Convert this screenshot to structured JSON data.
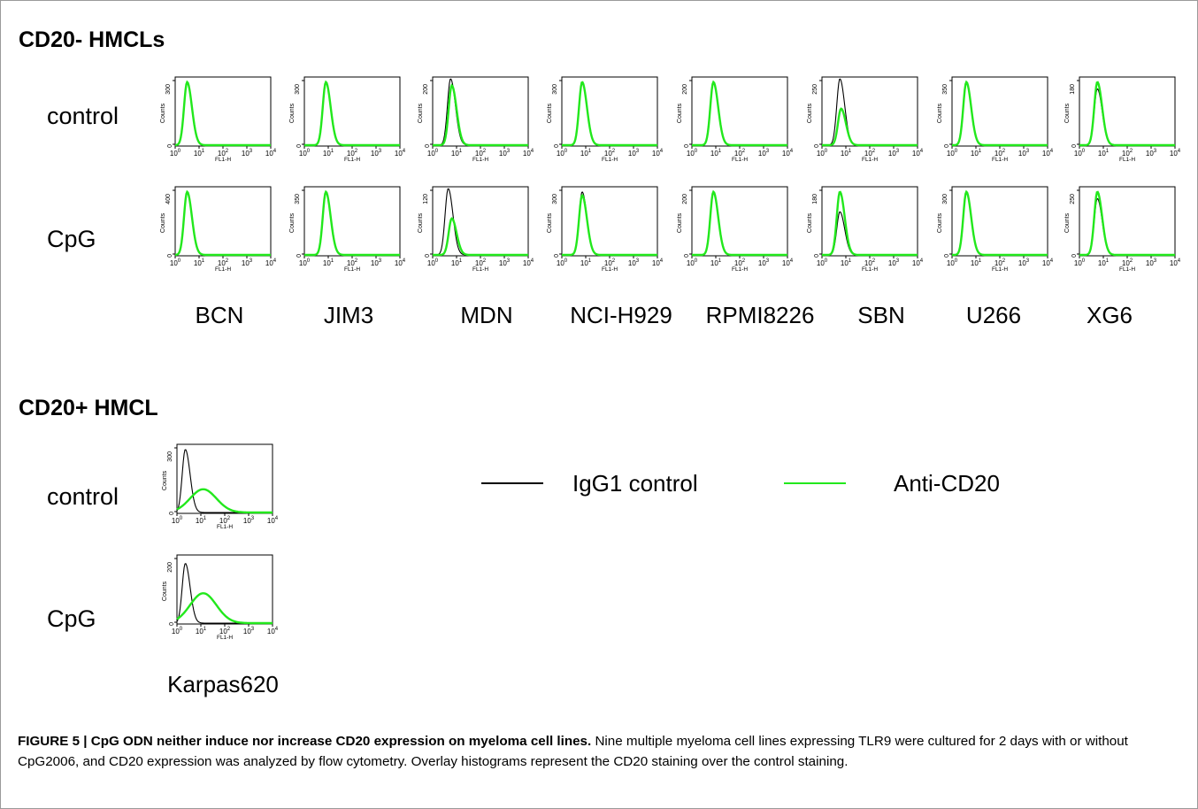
{
  "figure": {
    "section1_title": "CD20- HMCLs",
    "section2_title": "CD20+ HMCL",
    "row_labels": [
      "control",
      "CpG"
    ],
    "cell_lines": [
      "BCN",
      "JIM3",
      "MDN",
      "NCI-H929",
      "RPMI8226",
      "SBN",
      "U266",
      "XG6"
    ],
    "cd20_pos_line": "Karpas620",
    "axis": {
      "xlabel": "FL1-H",
      "ylabel": "Counts",
      "x_ticks": [
        "10^0",
        "10^1",
        "10^2",
        "10^3",
        "10^4"
      ]
    },
    "legend": [
      {
        "label": "IgG1 control",
        "color": "#000000"
      },
      {
        "label": "Anti-CD20",
        "color": "#22e81c"
      }
    ],
    "caption": {
      "bold": "FIGURE 5 | CpG ODN neither induce nor increase CD20 expression on myeloma cell lines.",
      "text": "Nine multiple myeloma cell lines expressing TLR9 were cultured for 2 days with or without CpG2006, and CD20 expression was analyzed by flow cytometry. Overlay histograms represent the CD20 staining over the control staining."
    }
  },
  "chart_data": [
    {
      "type": "histogram",
      "cell_line": "BCN",
      "condition": "control",
      "ymax_label": "300",
      "x_scale": "log",
      "series": [
        {
          "name": "IgG1 control",
          "peak_log10": 0.5,
          "rel_height": 0.95
        },
        {
          "name": "Anti-CD20",
          "peak_log10": 0.5,
          "rel_height": 0.95
        }
      ]
    },
    {
      "type": "histogram",
      "cell_line": "JIM3",
      "condition": "control",
      "ymax_label": "300",
      "x_scale": "log",
      "series": [
        {
          "name": "IgG1 control",
          "peak_log10": 0.9,
          "rel_height": 0.95
        },
        {
          "name": "Anti-CD20",
          "peak_log10": 0.9,
          "rel_height": 0.95
        }
      ]
    },
    {
      "type": "histogram",
      "cell_line": "MDN",
      "condition": "control",
      "ymax_label": "200",
      "x_scale": "log",
      "series": [
        {
          "name": "IgG1 control",
          "peak_log10": 0.75,
          "rel_height": 1.0
        },
        {
          "name": "Anti-CD20",
          "peak_log10": 0.8,
          "rel_height": 0.9
        }
      ]
    },
    {
      "type": "histogram",
      "cell_line": "NCI-H929",
      "condition": "control",
      "ymax_label": "300",
      "x_scale": "log",
      "series": [
        {
          "name": "IgG1 control",
          "peak_log10": 0.85,
          "rel_height": 0.95
        },
        {
          "name": "Anti-CD20",
          "peak_log10": 0.85,
          "rel_height": 0.95
        }
      ]
    },
    {
      "type": "histogram",
      "cell_line": "RPMI8226",
      "condition": "control",
      "ymax_label": "200",
      "x_scale": "log",
      "series": [
        {
          "name": "IgG1 control",
          "peak_log10": 0.9,
          "rel_height": 0.95
        },
        {
          "name": "Anti-CD20",
          "peak_log10": 0.9,
          "rel_height": 0.95
        }
      ]
    },
    {
      "type": "histogram",
      "cell_line": "SBN",
      "condition": "control",
      "ymax_label": "250",
      "x_scale": "log",
      "series": [
        {
          "name": "IgG1 control",
          "peak_log10": 0.75,
          "rel_height": 1.0
        },
        {
          "name": "Anti-CD20",
          "peak_log10": 0.8,
          "rel_height": 0.55
        }
      ]
    },
    {
      "type": "histogram",
      "cell_line": "U266",
      "condition": "control",
      "ymax_label": "350",
      "x_scale": "log",
      "series": [
        {
          "name": "IgG1 control",
          "peak_log10": 0.6,
          "rel_height": 0.95
        },
        {
          "name": "Anti-CD20",
          "peak_log10": 0.6,
          "rel_height": 0.95
        }
      ]
    },
    {
      "type": "histogram",
      "cell_line": "XG6",
      "condition": "control",
      "ymax_label": "180",
      "x_scale": "log",
      "series": [
        {
          "name": "IgG1 control",
          "peak_log10": 0.75,
          "rel_height": 0.85
        },
        {
          "name": "Anti-CD20",
          "peak_log10": 0.75,
          "rel_height": 0.95
        }
      ]
    },
    {
      "type": "histogram",
      "cell_line": "BCN",
      "condition": "CpG",
      "ymax_label": "400",
      "x_scale": "log",
      "series": [
        {
          "name": "IgG1 control",
          "peak_log10": 0.5,
          "rel_height": 0.95
        },
        {
          "name": "Anti-CD20",
          "peak_log10": 0.5,
          "rel_height": 0.95
        }
      ]
    },
    {
      "type": "histogram",
      "cell_line": "JIM3",
      "condition": "CpG",
      "ymax_label": "350",
      "x_scale": "log",
      "series": [
        {
          "name": "IgG1 control",
          "peak_log10": 0.9,
          "rel_height": 0.95
        },
        {
          "name": "Anti-CD20",
          "peak_log10": 0.9,
          "rel_height": 0.95
        }
      ]
    },
    {
      "type": "histogram",
      "cell_line": "MDN",
      "condition": "CpG",
      "ymax_label": "120",
      "x_scale": "log",
      "series": [
        {
          "name": "IgG1 control",
          "peak_log10": 0.65,
          "rel_height": 1.0
        },
        {
          "name": "Anti-CD20",
          "peak_log10": 0.8,
          "rel_height": 0.55
        }
      ]
    },
    {
      "type": "histogram",
      "cell_line": "NCI-H929",
      "condition": "CpG",
      "ymax_label": "300",
      "x_scale": "log",
      "series": [
        {
          "name": "IgG1 control",
          "peak_log10": 0.85,
          "rel_height": 0.95
        },
        {
          "name": "Anti-CD20",
          "peak_log10": 0.85,
          "rel_height": 0.9
        }
      ]
    },
    {
      "type": "histogram",
      "cell_line": "RPMI8226",
      "condition": "CpG",
      "ymax_label": "200",
      "x_scale": "log",
      "series": [
        {
          "name": "IgG1 control",
          "peak_log10": 0.9,
          "rel_height": 0.95
        },
        {
          "name": "Anti-CD20",
          "peak_log10": 0.9,
          "rel_height": 0.95
        }
      ]
    },
    {
      "type": "histogram",
      "cell_line": "SBN",
      "condition": "CpG",
      "ymax_label": "180",
      "x_scale": "log",
      "series": [
        {
          "name": "IgG1 control",
          "peak_log10": 0.75,
          "rel_height": 0.65
        },
        {
          "name": "Anti-CD20",
          "peak_log10": 0.75,
          "rel_height": 0.95
        }
      ]
    },
    {
      "type": "histogram",
      "cell_line": "U266",
      "condition": "CpG",
      "ymax_label": "300",
      "x_scale": "log",
      "series": [
        {
          "name": "IgG1 control",
          "peak_log10": 0.6,
          "rel_height": 0.95
        },
        {
          "name": "Anti-CD20",
          "peak_log10": 0.6,
          "rel_height": 0.95
        }
      ]
    },
    {
      "type": "histogram",
      "cell_line": "XG6",
      "condition": "CpG",
      "ymax_label": "250",
      "x_scale": "log",
      "series": [
        {
          "name": "IgG1 control",
          "peak_log10": 0.75,
          "rel_height": 0.85
        },
        {
          "name": "Anti-CD20",
          "peak_log10": 0.75,
          "rel_height": 0.95
        }
      ]
    },
    {
      "type": "histogram",
      "cell_line": "Karpas620",
      "condition": "control",
      "ymax_label": "300",
      "x_scale": "log",
      "series": [
        {
          "name": "IgG1 control",
          "peak_log10": 0.35,
          "rel_height": 0.95
        },
        {
          "name": "Anti-CD20",
          "peak_log10": 1.1,
          "rel_height": 0.35
        }
      ]
    },
    {
      "type": "histogram",
      "cell_line": "Karpas620",
      "condition": "CpG",
      "ymax_label": "200",
      "x_scale": "log",
      "series": [
        {
          "name": "IgG1 control",
          "peak_log10": 0.35,
          "rel_height": 0.9
        },
        {
          "name": "Anti-CD20",
          "peak_log10": 1.1,
          "rel_height": 0.45
        }
      ]
    }
  ]
}
